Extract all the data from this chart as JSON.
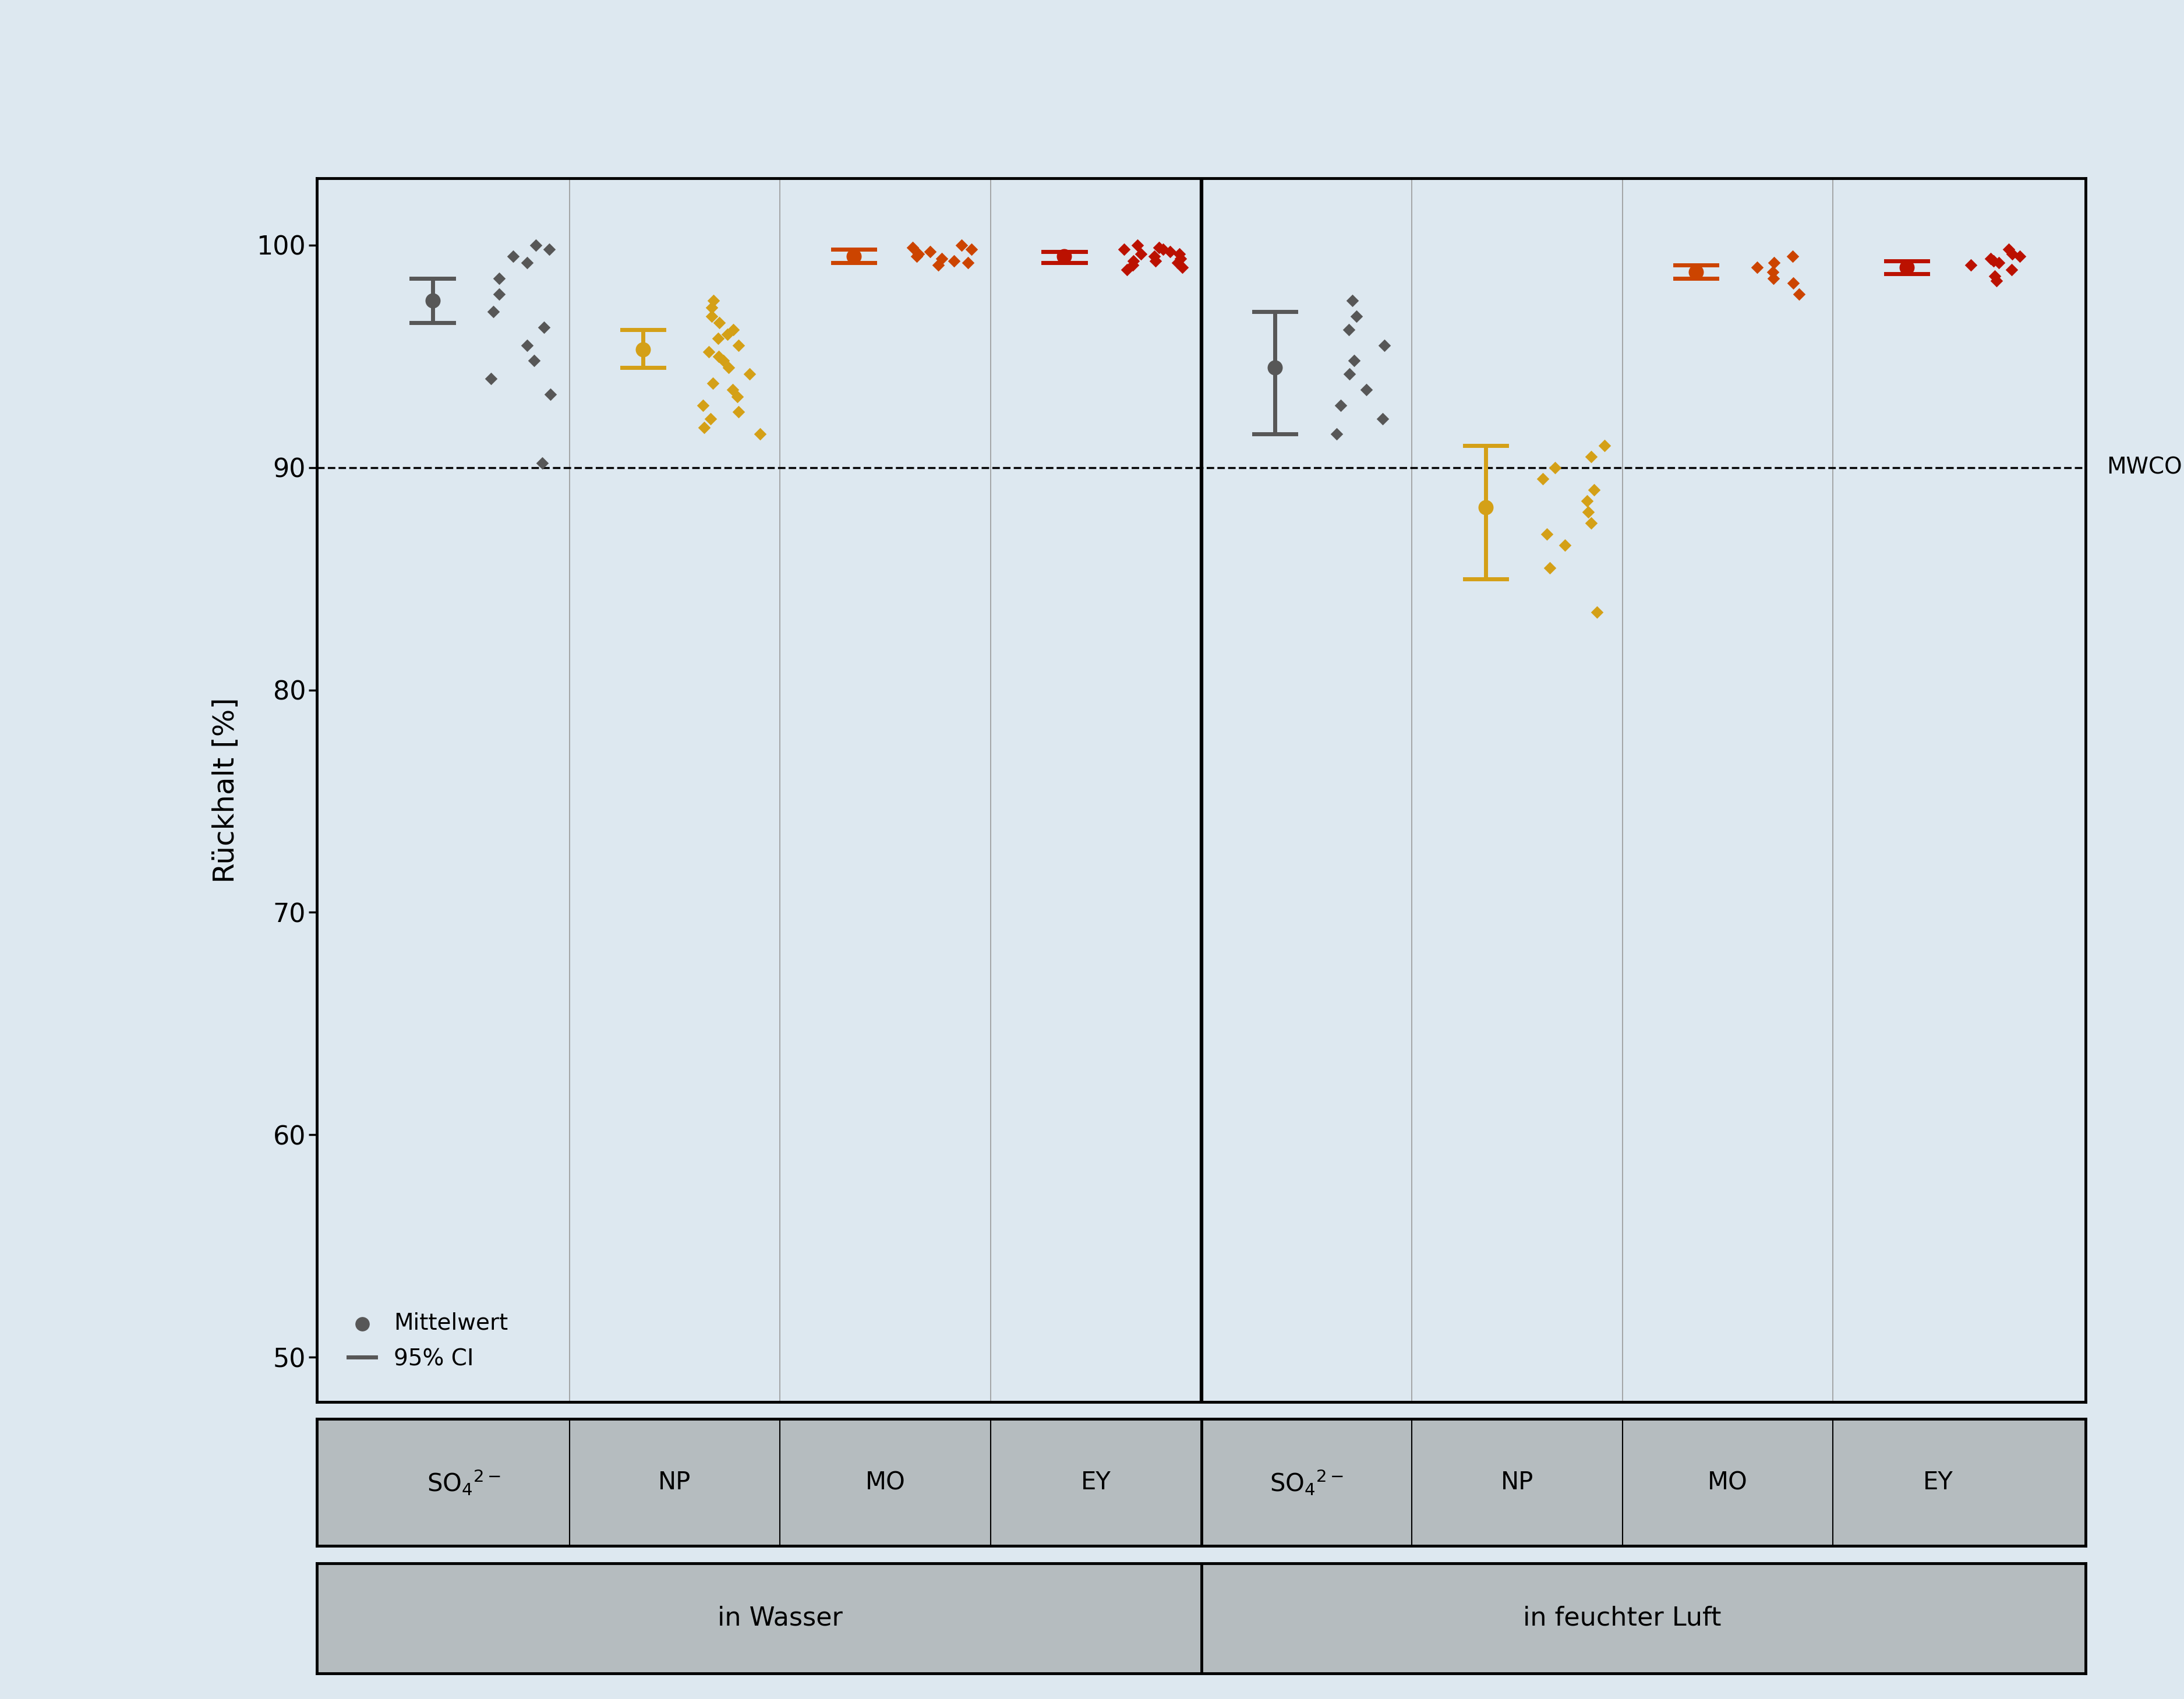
{
  "background_color": "#dde8f0",
  "plot_bg_color": "#dde8f0",
  "ylabel": "Rückhalt [%]",
  "ylim": [
    48,
    103
  ],
  "yticks": [
    50,
    60,
    70,
    80,
    90,
    100
  ],
  "mwco_line": 90,
  "mwco_label": "MWCO",
  "group_labels_row1": [
    "SO$_4$$^{2-}$",
    "NP",
    "MO",
    "EY",
    "SO$_4$$^{2-}$",
    "NP",
    "MO",
    "EY"
  ],
  "group_labels_row2": [
    "in Wasser",
    "in feuchter Luft"
  ],
  "colors": {
    "dark_gray": "#575757",
    "yellow": "#D4A017",
    "orange": "#CC4400",
    "red": "#BB1100"
  },
  "legend_mittelwert": "Mittelwert",
  "legend_ci": "95% CI",
  "point_data": {
    "wasser_SO4": {
      "mean": 97.5,
      "ci_lo": 96.5,
      "ci_hi": 98.5,
      "pts": [
        99.5,
        99.8,
        100.0,
        99.2,
        98.5,
        97.8,
        97.0,
        96.3,
        95.5,
        94.8,
        94.0,
        93.3,
        90.2
      ],
      "color": "dark_gray",
      "xbase": 1.0
    },
    "wasser_NP": {
      "mean": 95.3,
      "ci_lo": 94.5,
      "ci_hi": 96.2,
      "pts": [
        97.5,
        97.2,
        96.8,
        96.5,
        96.2,
        96.0,
        95.8,
        95.5,
        95.2,
        95.0,
        94.8,
        94.5,
        94.2,
        93.8,
        93.5,
        93.2,
        92.8,
        92.5,
        92.2,
        91.8,
        91.5
      ],
      "color": "yellow",
      "xbase": 2.0
    },
    "wasser_MO": {
      "mean": 99.5,
      "ci_lo": 99.2,
      "ci_hi": 99.8,
      "pts": [
        99.8,
        100.0,
        99.7,
        99.5,
        99.3,
        99.1,
        99.6,
        99.4,
        99.9,
        99.2
      ],
      "color": "orange",
      "xbase": 3.0
    },
    "wasser_EY": {
      "mean": 99.5,
      "ci_lo": 99.2,
      "ci_hi": 99.7,
      "pts": [
        100.0,
        99.8,
        99.6,
        99.5,
        99.3,
        99.1,
        99.0,
        99.7,
        99.4,
        99.2,
        99.9,
        99.6,
        98.9,
        99.3,
        99.8
      ],
      "color": "red",
      "xbase": 4.0
    },
    "luft_SO4": {
      "mean": 94.5,
      "ci_lo": 91.5,
      "ci_hi": 97.0,
      "pts": [
        97.5,
        96.8,
        96.2,
        95.5,
        94.8,
        94.2,
        93.5,
        92.8,
        92.2,
        91.5
      ],
      "color": "dark_gray",
      "xbase": 5.0
    },
    "luft_NP": {
      "mean": 88.2,
      "ci_lo": 85.0,
      "ci_hi": 91.0,
      "pts": [
        91.0,
        90.5,
        90.0,
        89.5,
        89.0,
        88.5,
        88.0,
        87.5,
        87.0,
        86.5,
        85.5,
        83.5
      ],
      "color": "yellow",
      "xbase": 6.0
    },
    "luft_MO": {
      "mean": 98.8,
      "ci_lo": 98.5,
      "ci_hi": 99.1,
      "pts": [
        99.5,
        99.2,
        99.0,
        98.8,
        98.5,
        97.8,
        98.3
      ],
      "color": "orange",
      "xbase": 7.0
    },
    "luft_EY": {
      "mean": 99.0,
      "ci_lo": 98.7,
      "ci_hi": 99.3,
      "pts": [
        99.5,
        99.3,
        99.1,
        99.8,
        98.9,
        99.2,
        99.6,
        98.6,
        98.4,
        99.4
      ],
      "color": "red",
      "xbase": 8.0
    }
  }
}
